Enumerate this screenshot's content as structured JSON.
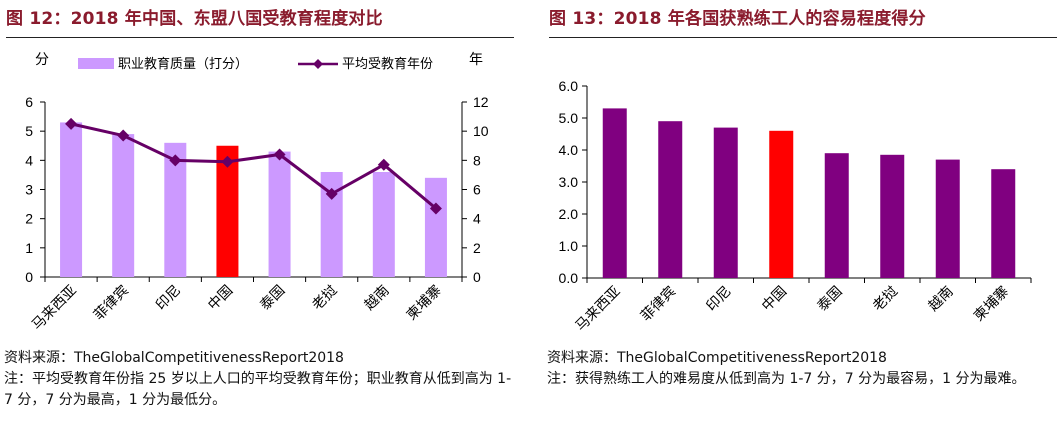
{
  "left_panel": {
    "title": "图 12：2018 年中国、东盟八国受教育程度对比",
    "source": "资料来源：TheGlobalCompetitivenessReport2018",
    "note": "注：平均受教育年份指 25 岁以上人口的平均受教育年份；职业教育从低到高为 1-7 分，7 分为最高，1 分为最低分。"
  },
  "right_panel": {
    "title": "图 13：2018 年各国获熟练工人的容易程度得分",
    "source": "资料来源：TheGlobalCompetitivenessReport2018",
    "note": "注：获得熟练工人的难易度从低到高为 1-7 分，7 分为最容易，1 分为最难。"
  },
  "colors": {
    "title": "#8a1b2d",
    "bar_lavender": "#cc99ff",
    "bar_purple": "#800080",
    "bar_highlight": "#ff0000",
    "line_purple": "#660066"
  },
  "chart_data": [
    {
      "type": "bar",
      "categories": [
        "马来西亚",
        "菲律宾",
        "印尼",
        "中国",
        "泰国",
        "老挝",
        "越南",
        "柬埔寨"
      ],
      "highlight": "中国",
      "left_unit": "分",
      "right_unit": "年",
      "ylim": [
        0,
        6
      ],
      "yticks": [
        "0",
        "1",
        "2",
        "3",
        "4",
        "5",
        "6"
      ],
      "y2lim": [
        0,
        12
      ],
      "y2ticks": [
        "0",
        "2",
        "4",
        "6",
        "8",
        "10",
        "12"
      ],
      "legend_position": "top",
      "grid": false,
      "series": [
        {
          "name": "职业教育质量（打分）",
          "type": "bar",
          "axis": "left",
          "values": [
            5.3,
            4.9,
            4.6,
            4.5,
            4.3,
            3.6,
            3.6,
            3.4
          ]
        },
        {
          "name": "平均受教育年份",
          "type": "line",
          "axis": "right",
          "values": [
            10.5,
            9.7,
            8.0,
            7.9,
            8.4,
            5.7,
            7.7,
            4.7
          ]
        }
      ]
    },
    {
      "type": "bar",
      "categories": [
        "马来西亚",
        "菲律宾",
        "印尼",
        "中国",
        "泰国",
        "老挝",
        "越南",
        "柬埔寨"
      ],
      "highlight": "中国",
      "ylim": [
        0,
        6
      ],
      "yticks": [
        "0.0",
        "1.0",
        "2.0",
        "3.0",
        "4.0",
        "5.0",
        "6.0"
      ],
      "grid": false,
      "values": [
        5.3,
        4.9,
        4.7,
        4.6,
        3.9,
        3.85,
        3.7,
        3.4
      ]
    }
  ]
}
